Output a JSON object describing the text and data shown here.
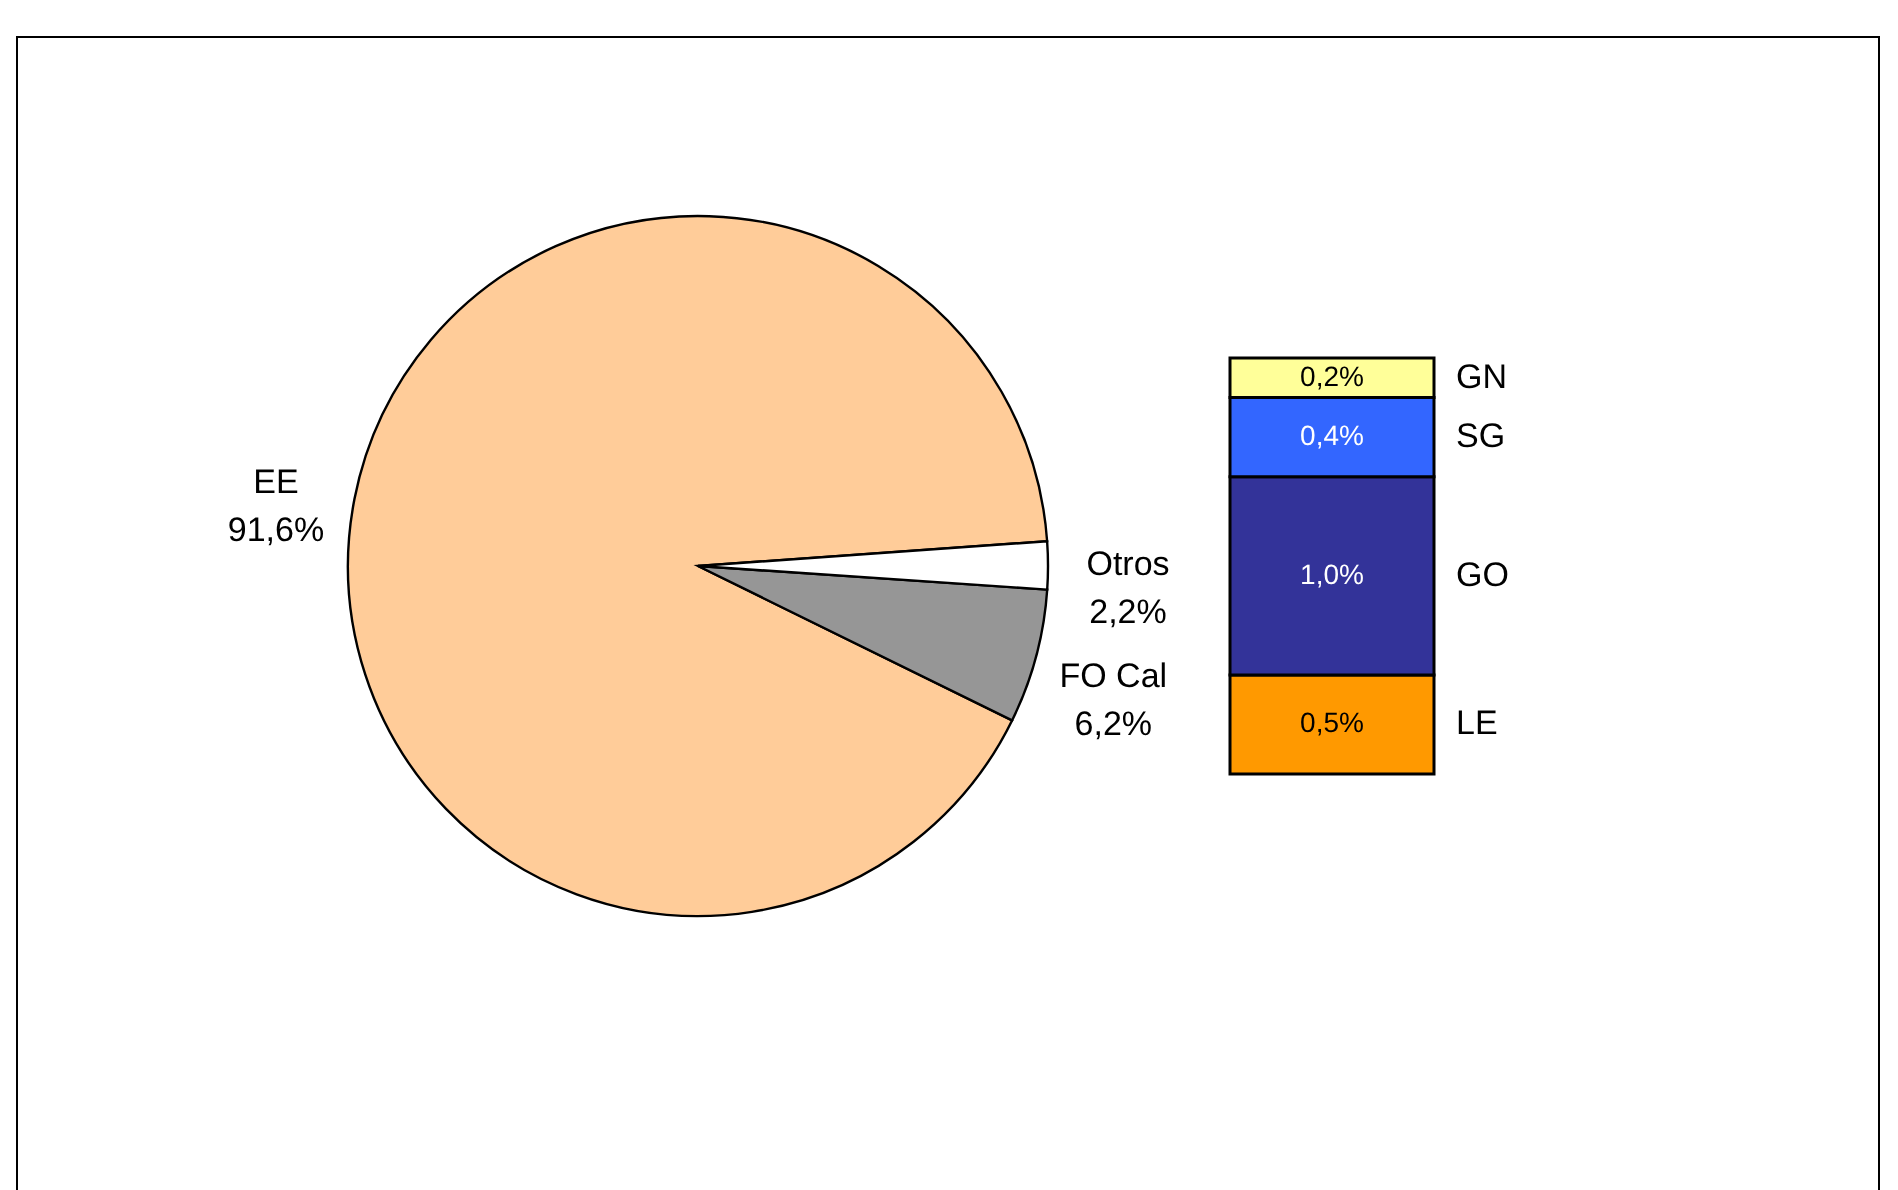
{
  "chart_data": [
    {
      "type": "pie",
      "categories": [
        "EE",
        "FO Cal",
        "Otros"
      ],
      "values": [
        91.6,
        6.2,
        2.2
      ],
      "colors": [
        "#ffcc99",
        "#969696",
        "#ffffff"
      ],
      "value_labels": [
        "91,6%",
        "6,2%",
        "2,2%"
      ]
    },
    {
      "type": "bar",
      "stacked": true,
      "categories": [
        null
      ],
      "series": [
        {
          "name": "LE",
          "color": "#ff9900",
          "values": [
            0.5
          ],
          "value_labels": [
            "0,5%"
          ]
        },
        {
          "name": "GO",
          "color": "#333399",
          "values": [
            1.0
          ],
          "value_labels": [
            "1,0%"
          ]
        },
        {
          "name": "SG",
          "color": "#3366ff",
          "values": [
            0.4
          ],
          "value_labels": [
            "0,4%"
          ]
        },
        {
          "name": "GN",
          "color": "#ffff99",
          "values": [
            0.2
          ],
          "value_labels": [
            "0,2%"
          ]
        }
      ]
    }
  ]
}
